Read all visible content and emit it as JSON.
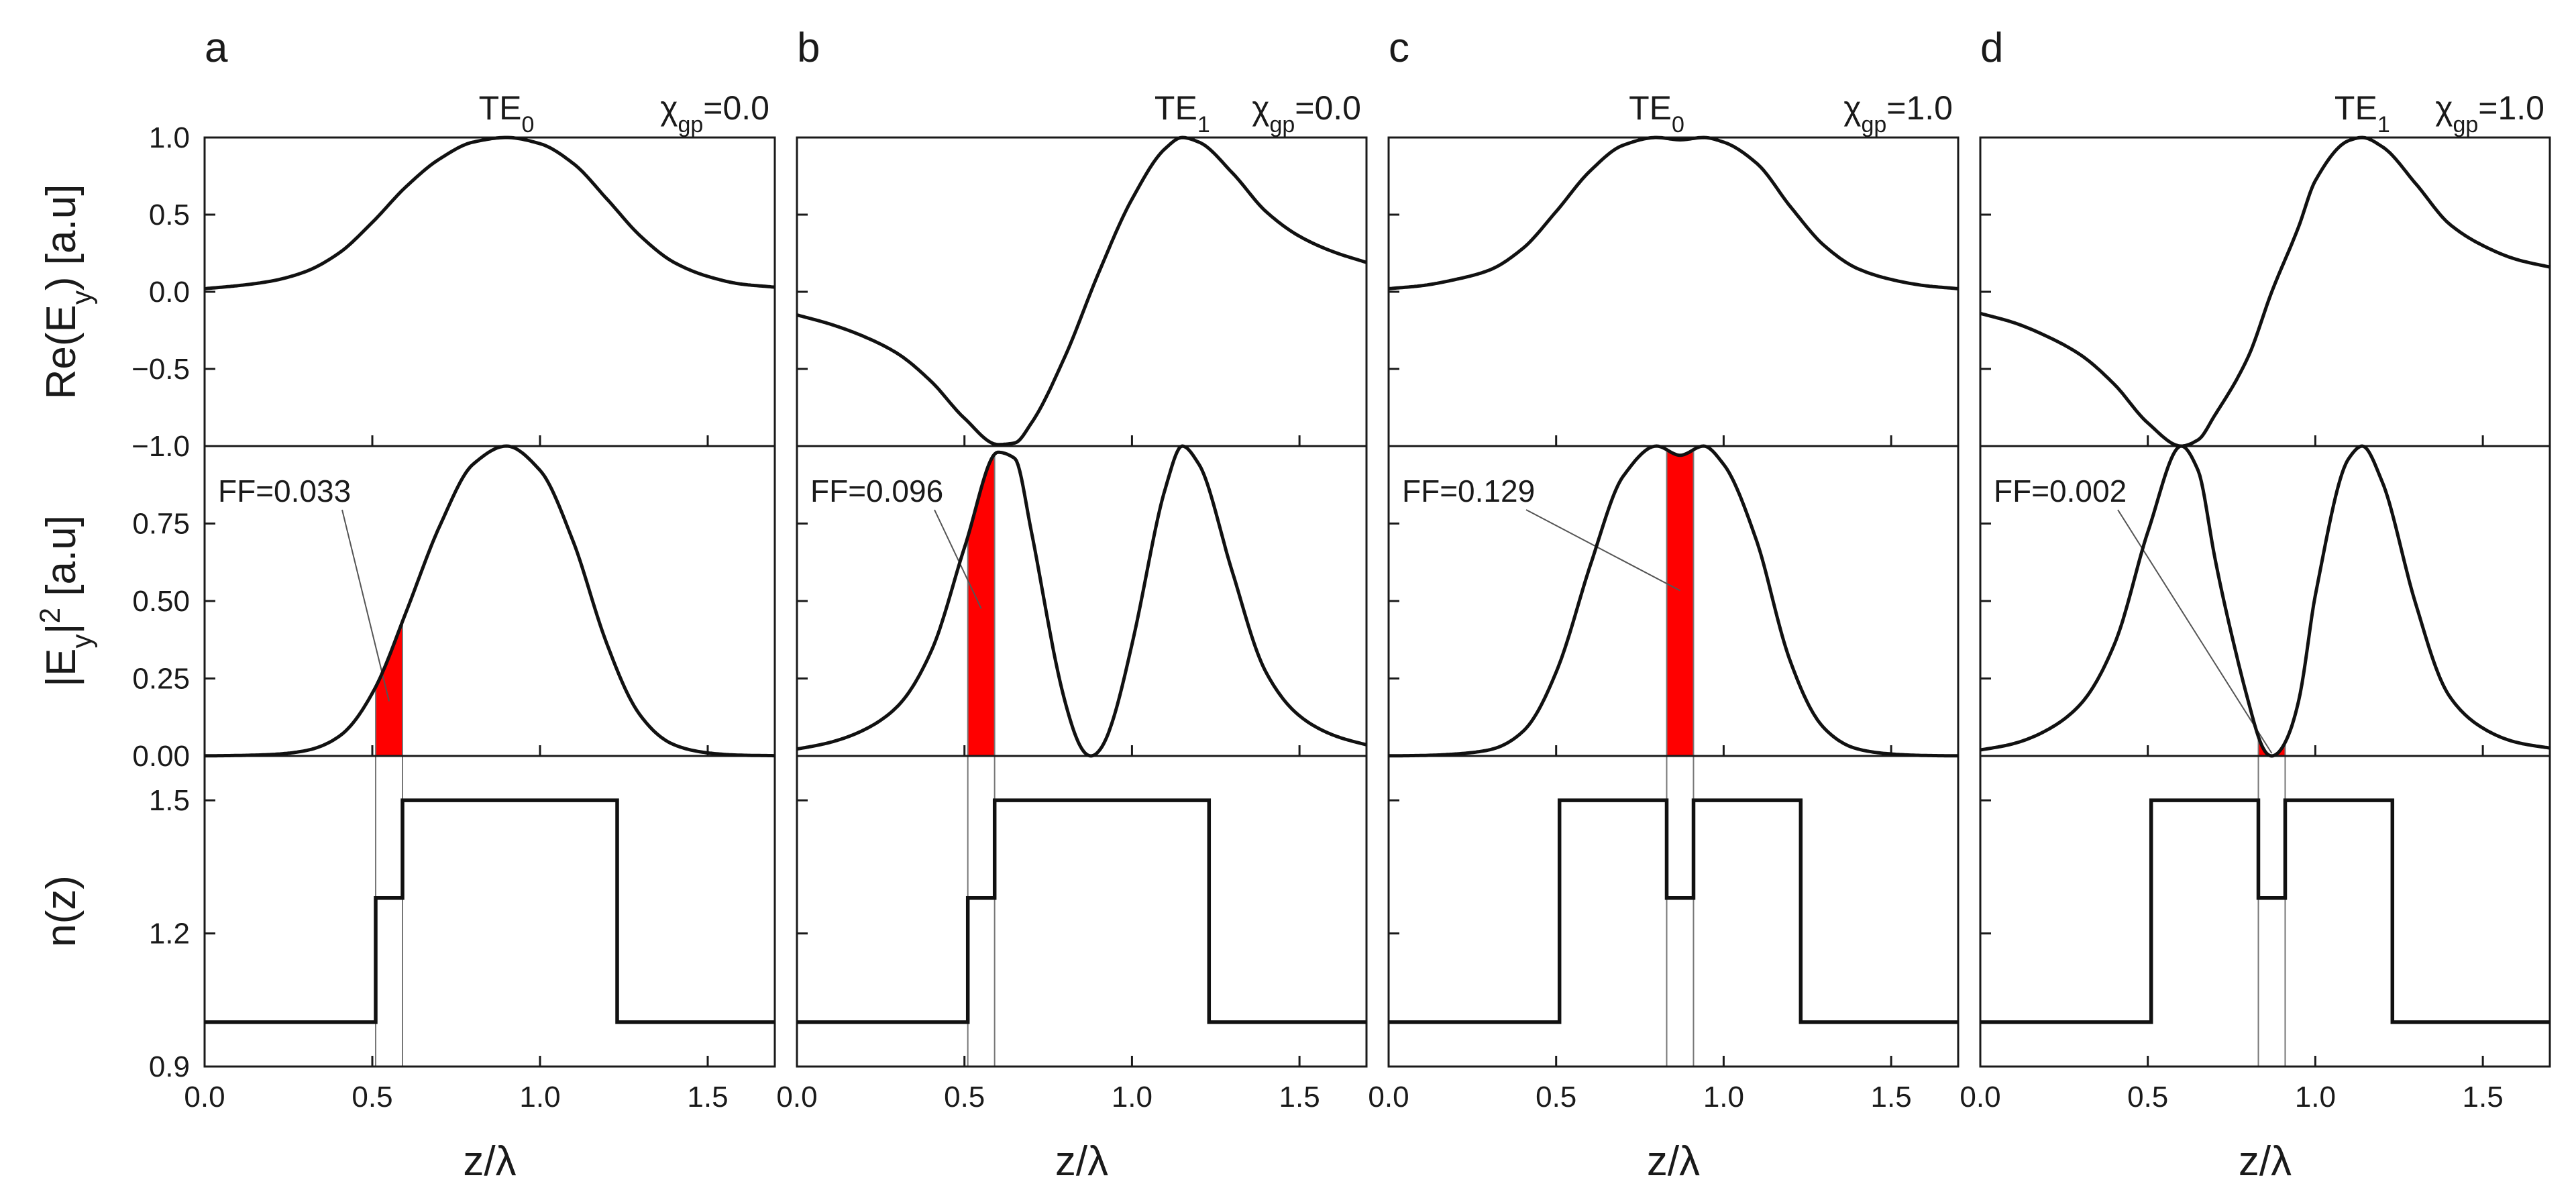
{
  "chart_data": {
    "type": "line",
    "layout": "4 columns x 3 stacked rows, shared x axis",
    "x_label_text": "z/λ",
    "x_range": [
      0,
      1.7
    ],
    "x_ticks": [
      "0.0",
      "0.5",
      "1.0",
      "1.5"
    ],
    "y_titles": {
      "row1": "Re(Ey) [a.u]",
      "row2": "|Ey|2 [a.u]",
      "row3": "n(z)"
    },
    "y_ticks": {
      "row1": [
        "1.0",
        "0.5",
        "0.0",
        "−0.5",
        "−1.0"
      ],
      "row2": [
        "0.75",
        "0.50",
        "0.25",
        "0.00"
      ],
      "row3": [
        "1.5",
        "1.2",
        "0.9"
      ]
    },
    "y_ranges": {
      "row1": [
        -1.0,
        1.0
      ],
      "row2": [
        0.0,
        1.0
      ],
      "row3": [
        0.9,
        1.6
      ]
    },
    "panels": [
      {
        "letter": "a",
        "mode": "TE",
        "mode_index": "0",
        "chi_symbol": "χ",
        "chi_sub": "gp",
        "chi_value": "=0.0",
        "ff_text": "FF=0.033",
        "gap": [
          0.51,
          0.59
        ],
        "index_profile": [
          [
            0,
            1.0
          ],
          [
            0.51,
            1.0
          ],
          [
            0.51,
            1.28
          ],
          [
            0.59,
            1.28
          ],
          [
            0.59,
            1.5
          ],
          [
            1.23,
            1.5
          ],
          [
            1.23,
            1.0
          ],
          [
            1.7,
            1.0
          ]
        ],
        "re_field": [
          [
            0,
            0.02
          ],
          [
            0.1,
            0.04
          ],
          [
            0.2,
            0.07
          ],
          [
            0.3,
            0.13
          ],
          [
            0.4,
            0.25
          ],
          [
            0.5,
            0.45
          ],
          [
            0.6,
            0.68
          ],
          [
            0.7,
            0.86
          ],
          [
            0.8,
            0.97
          ],
          [
            0.9,
            1.0
          ],
          [
            1.0,
            0.96
          ],
          [
            1.1,
            0.83
          ],
          [
            1.2,
            0.6
          ],
          [
            1.3,
            0.36
          ],
          [
            1.4,
            0.19
          ],
          [
            1.5,
            0.1
          ],
          [
            1.6,
            0.05
          ],
          [
            1.7,
            0.03
          ]
        ]
      },
      {
        "letter": "b",
        "mode": "TE",
        "mode_index": "1",
        "chi_symbol": "χ",
        "chi_sub": "gp",
        "chi_value": "=0.0",
        "ff_text": "FF=0.096",
        "gap": [
          0.51,
          0.59
        ],
        "index_profile": [
          [
            0,
            1.0
          ],
          [
            0.51,
            1.0
          ],
          [
            0.51,
            1.28
          ],
          [
            0.59,
            1.28
          ],
          [
            0.59,
            1.5
          ],
          [
            1.23,
            1.5
          ],
          [
            1.23,
            1.0
          ],
          [
            1.7,
            1.0
          ]
        ],
        "re_field": [
          [
            0,
            -0.15
          ],
          [
            0.1,
            -0.21
          ],
          [
            0.2,
            -0.29
          ],
          [
            0.3,
            -0.4
          ],
          [
            0.4,
            -0.58
          ],
          [
            0.5,
            -0.82
          ],
          [
            0.6,
            -0.99
          ],
          [
            0.65,
            -0.98
          ],
          [
            0.7,
            -0.85
          ],
          [
            0.8,
            -0.42
          ],
          [
            0.9,
            0.12
          ],
          [
            1.0,
            0.6
          ],
          [
            1.1,
            0.93
          ],
          [
            1.15,
            1.0
          ],
          [
            1.2,
            0.97
          ],
          [
            1.3,
            0.77
          ],
          [
            1.4,
            0.52
          ],
          [
            1.5,
            0.36
          ],
          [
            1.6,
            0.26
          ],
          [
            1.7,
            0.19
          ]
        ]
      },
      {
        "letter": "c",
        "mode": "TE",
        "mode_index": "0",
        "chi_symbol": "χ",
        "chi_sub": "gp",
        "chi_value": "=1.0",
        "ff_text": "FF=0.129",
        "gap": [
          0.83,
          0.91
        ],
        "index_profile": [
          [
            0,
            1.0
          ],
          [
            0.51,
            1.0
          ],
          [
            0.51,
            1.5
          ],
          [
            0.83,
            1.5
          ],
          [
            0.83,
            1.28
          ],
          [
            0.91,
            1.28
          ],
          [
            0.91,
            1.5
          ],
          [
            1.23,
            1.5
          ],
          [
            1.23,
            1.0
          ],
          [
            1.7,
            1.0
          ]
        ],
        "re_field": [
          [
            0,
            0.02
          ],
          [
            0.1,
            0.04
          ],
          [
            0.2,
            0.08
          ],
          [
            0.3,
            0.14
          ],
          [
            0.4,
            0.28
          ],
          [
            0.5,
            0.52
          ],
          [
            0.6,
            0.78
          ],
          [
            0.7,
            0.95
          ],
          [
            0.8,
            1.0
          ],
          [
            0.87,
            0.985
          ],
          [
            0.94,
            1.0
          ],
          [
            1.0,
            0.97
          ],
          [
            1.1,
            0.83
          ],
          [
            1.2,
            0.55
          ],
          [
            1.3,
            0.3
          ],
          [
            1.4,
            0.15
          ],
          [
            1.5,
            0.08
          ],
          [
            1.6,
            0.04
          ],
          [
            1.7,
            0.02
          ]
        ]
      },
      {
        "letter": "d",
        "mode": "TE",
        "mode_index": "1",
        "chi_symbol": "χ",
        "chi_sub": "gp",
        "chi_value": "=1.0",
        "ff_text": "FF=0.002",
        "gap": [
          0.83,
          0.91
        ],
        "index_profile": [
          [
            0,
            1.0
          ],
          [
            0.51,
            1.0
          ],
          [
            0.51,
            1.5
          ],
          [
            0.83,
            1.5
          ],
          [
            0.83,
            1.28
          ],
          [
            0.91,
            1.28
          ],
          [
            0.91,
            1.5
          ],
          [
            1.23,
            1.5
          ],
          [
            1.23,
            1.0
          ],
          [
            1.7,
            1.0
          ]
        ],
        "re_field": [
          [
            0,
            -0.14
          ],
          [
            0.1,
            -0.2
          ],
          [
            0.2,
            -0.29
          ],
          [
            0.3,
            -0.41
          ],
          [
            0.4,
            -0.6
          ],
          [
            0.5,
            -0.85
          ],
          [
            0.6,
            -1.0
          ],
          [
            0.65,
            -0.96
          ],
          [
            0.7,
            -0.8
          ],
          [
            0.8,
            -0.42
          ],
          [
            0.87,
            0.0
          ],
          [
            0.95,
            0.42
          ],
          [
            1.0,
            0.72
          ],
          [
            1.1,
            0.98
          ],
          [
            1.14,
            1.0
          ],
          [
            1.2,
            0.94
          ],
          [
            1.3,
            0.7
          ],
          [
            1.4,
            0.44
          ],
          [
            1.5,
            0.3
          ],
          [
            1.6,
            0.21
          ],
          [
            1.7,
            0.16
          ]
        ]
      }
    ],
    "colors": {
      "curve": "#111111",
      "fill_factor_region": "#ff0000",
      "guide_line": "#777777"
    }
  }
}
